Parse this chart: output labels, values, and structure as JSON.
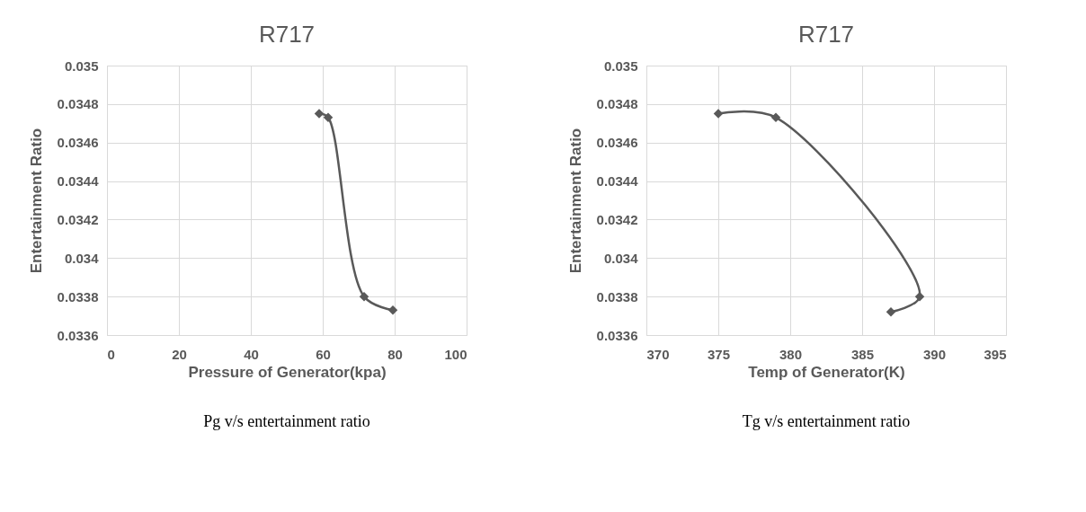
{
  "chart_data": [
    {
      "type": "line",
      "title": "R717",
      "xlabel": "Pressure of Generator(kpa)",
      "ylabel": "Entertainment Ratio",
      "x": [
        59,
        61.5,
        71.5,
        79.5
      ],
      "series": [
        {
          "color": "#595959",
          "values": [
            0.03475,
            0.03473,
            0.0338,
            0.03373
          ]
        }
      ],
      "xlim": [
        0,
        100
      ],
      "xticks": [
        0,
        20,
        40,
        60,
        80,
        100
      ],
      "ylim": [
        0.0336,
        0.035
      ],
      "yticks": [
        0.0336,
        0.0338,
        0.034,
        0.0342,
        0.0344,
        0.0346,
        0.0348,
        0.035
      ],
      "grid": true,
      "marker": "diamond",
      "annotations": [
        "Pg v/s entertainment ratio"
      ]
    },
    {
      "type": "line",
      "title": "R717",
      "xlabel": "Temp of Generator(K)",
      "ylabel": "Entertainment Ratio",
      "x": [
        375,
        379,
        389,
        387
      ],
      "series": [
        {
          "color": "#595959",
          "values": [
            0.03475,
            0.03473,
            0.0338,
            0.03372
          ]
        }
      ],
      "xlim": [
        370,
        395
      ],
      "xticks": [
        370,
        375,
        380,
        385,
        390,
        395
      ],
      "ylim": [
        0.0336,
        0.035
      ],
      "yticks": [
        0.0336,
        0.0338,
        0.034,
        0.0342,
        0.0344,
        0.0346,
        0.0348,
        0.035
      ],
      "grid": true,
      "marker": "diamond",
      "annotations": [
        "Tg v/s entertainment ratio"
      ]
    }
  ]
}
